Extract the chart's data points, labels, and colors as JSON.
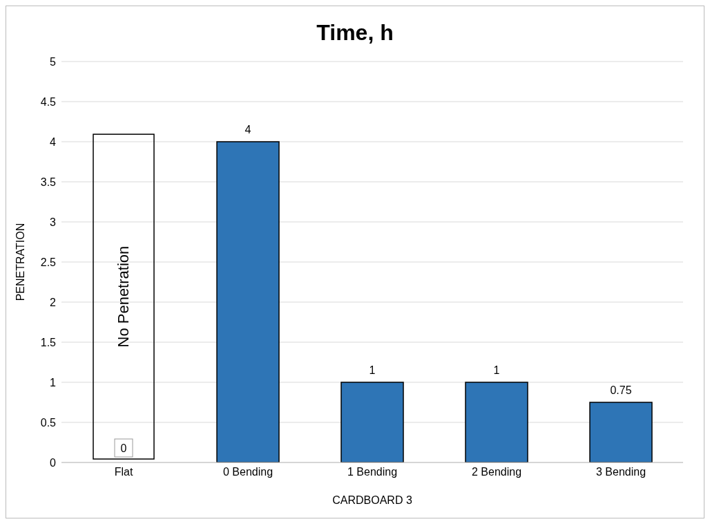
{
  "chart_data": {
    "type": "bar",
    "title": "Time, h",
    "xlabel": "CARDBOARD 3",
    "ylabel": "PENETRATION",
    "categories": [
      "Flat",
      "0 Bending",
      "1 Bending",
      "2 Bending",
      "3 Bending"
    ],
    "values": [
      0,
      4,
      1,
      1,
      0.75
    ],
    "color": "#2e75b6",
    "ylim": [
      0,
      5
    ],
    "yticks": [
      0,
      0.5,
      1,
      1.5,
      2,
      2.5,
      3,
      3.5,
      4,
      4.5,
      5
    ],
    "grid": "y",
    "data_labels": true,
    "annotations": [
      "No Penetration"
    ]
  }
}
